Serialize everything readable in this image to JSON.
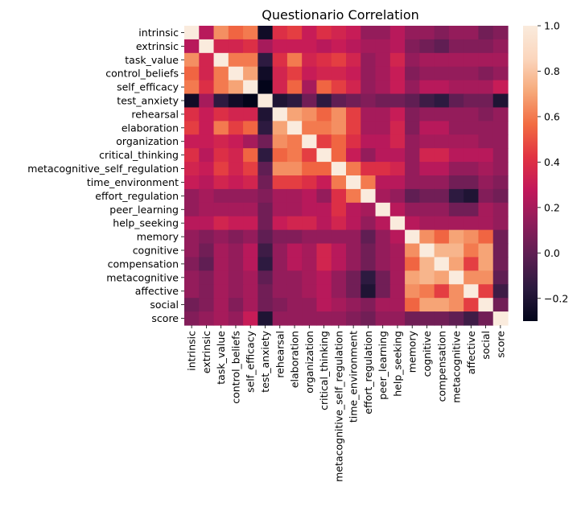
{
  "chart_data": {
    "type": "heatmap",
    "title": "Questionario Correlation",
    "xlabel": "",
    "ylabel": "",
    "variables": [
      "intrinsic",
      "extrinsic",
      "task_value",
      "control_beliefs",
      "self_efficacy",
      "test_anxiety",
      "rehearsal",
      "elaboration",
      "organization",
      "critical_thinking",
      "metacognitive_self_regulation",
      "time_environment",
      "effort_regulation",
      "peer_learning",
      "help_seeking",
      "memory",
      "cognitive",
      "compensation",
      "metacognitive",
      "affective",
      "social",
      "score"
    ],
    "matrix": [
      [
        1.0,
        0.25,
        0.65,
        0.55,
        0.6,
        -0.25,
        0.4,
        0.45,
        0.3,
        0.4,
        0.35,
        0.3,
        0.15,
        0.15,
        0.25,
        0.15,
        0.15,
        0.1,
        0.15,
        0.15,
        0.05,
        0.1
      ],
      [
        0.25,
        1.0,
        0.35,
        0.35,
        0.4,
        0.2,
        0.3,
        0.3,
        0.3,
        0.25,
        0.3,
        0.25,
        0.2,
        0.2,
        0.25,
        0.1,
        0.05,
        0.0,
        0.1,
        0.1,
        0.1,
        0.15
      ],
      [
        0.65,
        0.35,
        1.0,
        0.6,
        0.6,
        -0.15,
        0.4,
        0.6,
        0.35,
        0.4,
        0.45,
        0.35,
        0.15,
        0.2,
        0.35,
        0.15,
        0.2,
        0.2,
        0.2,
        0.2,
        0.2,
        0.2
      ],
      [
        0.55,
        0.35,
        0.6,
        1.0,
        0.7,
        -0.25,
        0.35,
        0.45,
        0.3,
        0.35,
        0.35,
        0.3,
        0.15,
        0.2,
        0.3,
        0.1,
        0.15,
        0.15,
        0.15,
        0.15,
        0.1,
        0.15
      ],
      [
        0.6,
        0.4,
        0.6,
        0.7,
        1.0,
        -0.3,
        0.35,
        0.55,
        0.2,
        0.55,
        0.45,
        0.35,
        0.15,
        0.2,
        0.3,
        0.15,
        0.25,
        0.25,
        0.2,
        0.2,
        0.2,
        0.3
      ],
      [
        -0.25,
        0.2,
        -0.15,
        -0.25,
        -0.3,
        1.0,
        -0.2,
        -0.15,
        0.05,
        -0.15,
        0.0,
        0.05,
        0.1,
        0.05,
        0.05,
        0.0,
        -0.1,
        -0.15,
        0.0,
        0.05,
        0.05,
        -0.2
      ],
      [
        0.4,
        0.3,
        0.4,
        0.35,
        0.35,
        -0.2,
        1.0,
        0.7,
        0.65,
        0.55,
        0.65,
        0.45,
        0.2,
        0.2,
        0.3,
        0.1,
        0.15,
        0.15,
        0.15,
        0.15,
        0.1,
        0.15
      ],
      [
        0.45,
        0.3,
        0.6,
        0.45,
        0.55,
        -0.15,
        0.7,
        1.0,
        0.6,
        0.6,
        0.65,
        0.45,
        0.2,
        0.2,
        0.35,
        0.1,
        0.25,
        0.25,
        0.15,
        0.15,
        0.15,
        0.15
      ],
      [
        0.3,
        0.3,
        0.35,
        0.3,
        0.2,
        0.05,
        0.65,
        0.6,
        1.0,
        0.45,
        0.55,
        0.4,
        0.25,
        0.25,
        0.35,
        0.15,
        0.2,
        0.2,
        0.2,
        0.2,
        0.15,
        0.15
      ],
      [
        0.4,
        0.25,
        0.4,
        0.35,
        0.55,
        -0.15,
        0.55,
        0.6,
        0.45,
        1.0,
        0.55,
        0.3,
        0.15,
        0.25,
        0.25,
        0.15,
        0.35,
        0.35,
        0.25,
        0.25,
        0.25,
        0.15
      ],
      [
        0.35,
        0.3,
        0.45,
        0.35,
        0.45,
        0.0,
        0.65,
        0.65,
        0.55,
        0.55,
        1.0,
        0.6,
        0.4,
        0.4,
        0.35,
        0.15,
        0.25,
        0.25,
        0.15,
        0.15,
        0.2,
        0.15
      ],
      [
        0.3,
        0.25,
        0.35,
        0.3,
        0.35,
        0.05,
        0.45,
        0.45,
        0.4,
        0.3,
        0.6,
        1.0,
        0.6,
        0.25,
        0.25,
        0.15,
        0.15,
        0.15,
        0.05,
        0.05,
        0.15,
        0.1
      ],
      [
        0.15,
        0.2,
        0.15,
        0.15,
        0.15,
        0.1,
        0.2,
        0.2,
        0.25,
        0.15,
        0.4,
        0.6,
        1.0,
        0.2,
        0.15,
        0.0,
        0.05,
        0.05,
        -0.15,
        -0.2,
        0.1,
        0.05
      ],
      [
        0.15,
        0.2,
        0.2,
        0.2,
        0.2,
        0.05,
        0.2,
        0.2,
        0.25,
        0.25,
        0.4,
        0.25,
        0.2,
        1.0,
        0.25,
        0.15,
        0.15,
        0.15,
        0.05,
        0.05,
        0.2,
        0.15
      ],
      [
        0.25,
        0.25,
        0.35,
        0.3,
        0.3,
        0.05,
        0.3,
        0.35,
        0.35,
        0.25,
        0.35,
        0.25,
        0.15,
        0.25,
        1.0,
        0.25,
        0.2,
        0.2,
        0.2,
        0.2,
        0.2,
        0.15
      ],
      [
        0.15,
        0.1,
        0.15,
        0.1,
        0.15,
        0.0,
        0.1,
        0.1,
        0.15,
        0.15,
        0.15,
        0.15,
        0.0,
        0.15,
        0.25,
        1.0,
        0.65,
        0.55,
        0.7,
        0.65,
        0.55,
        0.05
      ],
      [
        0.15,
        0.05,
        0.2,
        0.15,
        0.25,
        -0.1,
        0.15,
        0.25,
        0.2,
        0.35,
        0.25,
        0.15,
        0.05,
        0.15,
        0.2,
        0.65,
        1.0,
        0.75,
        0.75,
        0.6,
        0.7,
        0.05
      ],
      [
        0.1,
        0.0,
        0.2,
        0.15,
        0.25,
        -0.15,
        0.15,
        0.25,
        0.2,
        0.35,
        0.25,
        0.15,
        0.05,
        0.15,
        0.2,
        0.55,
        0.75,
        1.0,
        0.7,
        0.45,
        0.7,
        0.05
      ],
      [
        0.15,
        0.1,
        0.2,
        0.15,
        0.2,
        0.0,
        0.15,
        0.15,
        0.2,
        0.25,
        0.15,
        0.05,
        -0.15,
        0.05,
        0.2,
        0.7,
        0.75,
        0.7,
        1.0,
        0.65,
        0.65,
        0.0
      ],
      [
        0.15,
        0.1,
        0.2,
        0.15,
        0.2,
        0.05,
        0.15,
        0.15,
        0.2,
        0.25,
        0.15,
        0.05,
        -0.2,
        0.05,
        0.2,
        0.65,
        0.6,
        0.45,
        0.65,
        1.0,
        0.45,
        -0.1
      ],
      [
        0.05,
        0.1,
        0.2,
        0.1,
        0.2,
        0.05,
        0.1,
        0.15,
        0.15,
        0.25,
        0.2,
        0.15,
        0.1,
        0.2,
        0.2,
        0.55,
        0.7,
        0.7,
        0.65,
        0.45,
        1.0,
        0.05
      ],
      [
        0.1,
        0.15,
        0.2,
        0.15,
        0.3,
        -0.2,
        0.15,
        0.15,
        0.15,
        0.15,
        0.15,
        0.1,
        0.05,
        0.15,
        0.15,
        0.05,
        0.05,
        0.05,
        0.0,
        -0.1,
        0.05,
        1.0
      ]
    ],
    "vmin": -0.3,
    "vmax": 1.0,
    "colorbar_ticks": [
      1.0,
      0.8,
      0.6,
      0.4,
      0.2,
      0.0,
      -0.2
    ],
    "colorbar_tick_labels": [
      "1.0",
      "0.8",
      "0.6",
      "0.4",
      "0.2",
      "0.0",
      "−0.2"
    ],
    "colormap": "rocket",
    "colormap_stops": [
      "#03051a",
      "#2b1a3f",
      "#5c1e52",
      "#8e1d5b",
      "#c2185b",
      "#e13342",
      "#f26c42",
      "#f6a97a",
      "#fbd6bd",
      "#faebdd"
    ]
  }
}
